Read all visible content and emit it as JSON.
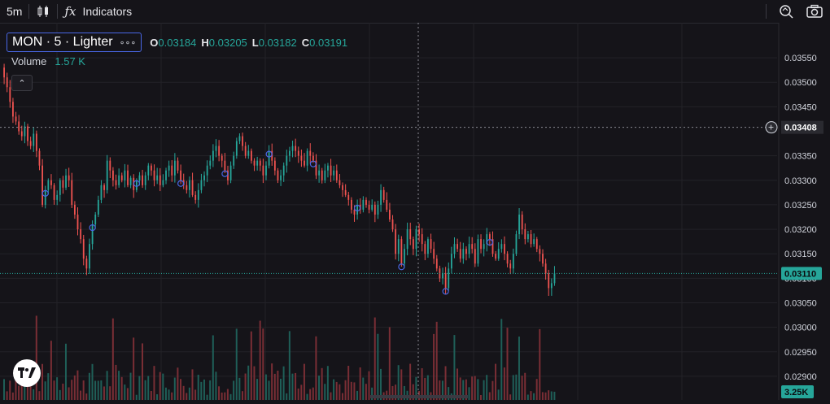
{
  "toolbar": {
    "interval": "5m",
    "indicators_label": "Indicators",
    "icons": [
      "candles-icon",
      "fx-icon",
      "zoom-search-icon",
      "camera-icon"
    ]
  },
  "legend": {
    "symbol": "MON · 5 · Lighter",
    "more": "∘∘∘",
    "o_key": "O",
    "o_val": "0.03184",
    "h_key": "H",
    "h_val": "0.03205",
    "l_key": "L",
    "l_val": "0.03182",
    "c_key": "C",
    "c_val": "0.03191",
    "volume_label": "Volume",
    "volume_value": "1.57 K",
    "collapse": "⌃"
  },
  "price_axis": {
    "ticks": [
      "0.03550",
      "0.03500",
      "0.03450",
      "0.03350",
      "0.03300",
      "0.03250",
      "0.03200",
      "0.03150",
      "0.03100",
      "0.03050",
      "0.03000",
      "0.02950",
      "0.02900"
    ],
    "crosshair_price": "0.03408",
    "last_price": "0.03110",
    "volume_tag": "3.25K",
    "plus_icon": "+"
  },
  "colors": {
    "bg": "#151419",
    "up": "#26a69a",
    "down": "#ef5350",
    "last_price_bg": "#26a69a",
    "accent": "#4967e6"
  },
  "chart_data": {
    "type": "candlestick",
    "interval": "5m",
    "ylim": [
      0.02875,
      0.03575
    ],
    "close": [
      0.0351,
      0.0349,
      0.0346,
      0.0343,
      0.0342,
      0.034,
      0.0339,
      0.0341,
      0.0338,
      0.0337,
      0.03395,
      0.0336,
      0.0333,
      0.0325,
      0.0328,
      0.033,
      0.0329,
      0.0326,
      0.0327,
      0.033,
      0.03285,
      0.0331,
      0.033,
      0.0325,
      0.0323,
      0.032,
      0.0318,
      0.0314,
      0.0312,
      0.0317,
      0.0321,
      0.0323,
      0.0326,
      0.0329,
      0.0328,
      0.0334,
      0.0332,
      0.033,
      0.0329,
      0.0331,
      0.033,
      0.0332,
      0.0329,
      0.03305,
      0.0328,
      0.033,
      0.0331,
      0.0329,
      0.0331,
      0.0333,
      0.0332,
      0.033,
      0.0331,
      0.0329,
      0.033,
      0.0332,
      0.0333,
      0.0331,
      0.0334,
      0.0332,
      0.033,
      0.0329,
      0.0328,
      0.033,
      0.0327,
      0.0326,
      0.0328,
      0.033,
      0.0331,
      0.0333,
      0.0334,
      0.0336,
      0.0337,
      0.0335,
      0.0334,
      0.0332,
      0.033,
      0.0333,
      0.0335,
      0.0338,
      0.0339,
      0.0337,
      0.0335,
      0.0336,
      0.0334,
      0.0333,
      0.0334,
      0.0333,
      0.0331,
      0.0333,
      0.0336,
      0.0334,
      0.0332,
      0.033,
      0.0331,
      0.0333,
      0.0335,
      0.0336,
      0.0337,
      0.0336,
      0.0335,
      0.0334,
      0.0333,
      0.0336,
      0.0335,
      0.0334,
      0.0331,
      0.0332,
      0.033,
      0.0332,
      0.0333,
      0.0331,
      0.0332,
      0.033,
      0.0329,
      0.0328,
      0.0327,
      0.0326,
      0.0324,
      0.0323,
      0.0325,
      0.0324,
      0.0326,
      0.0325,
      0.0324,
      0.0325,
      0.0323,
      0.0325,
      0.0328,
      0.0326,
      0.0324,
      0.0322,
      0.032,
      0.0315,
      0.0318,
      0.0313,
      0.0316,
      0.032,
      0.0318,
      0.0316,
      0.032,
      0.0319,
      0.0317,
      0.0315,
      0.0318,
      0.0316,
      0.0314,
      0.0312,
      0.031,
      0.0311,
      0.0308,
      0.0312,
      0.0315,
      0.0317,
      0.0316,
      0.0314,
      0.0316,
      0.0315,
      0.0317,
      0.0316,
      0.0313,
      0.0318,
      0.0316,
      0.0317,
      0.0319,
      0.0318,
      0.0315,
      0.0314,
      0.0316,
      0.0317,
      0.0315,
      0.0313,
      0.0312,
      0.0315,
      0.0319,
      0.0323,
      0.032,
      0.0318,
      0.0319,
      0.0317,
      0.0318,
      0.0316,
      0.0315,
      0.0313,
      0.0311,
      0.0308,
      0.0309,
      0.0311
    ],
    "volume_scale_max_k": 3.25
  }
}
